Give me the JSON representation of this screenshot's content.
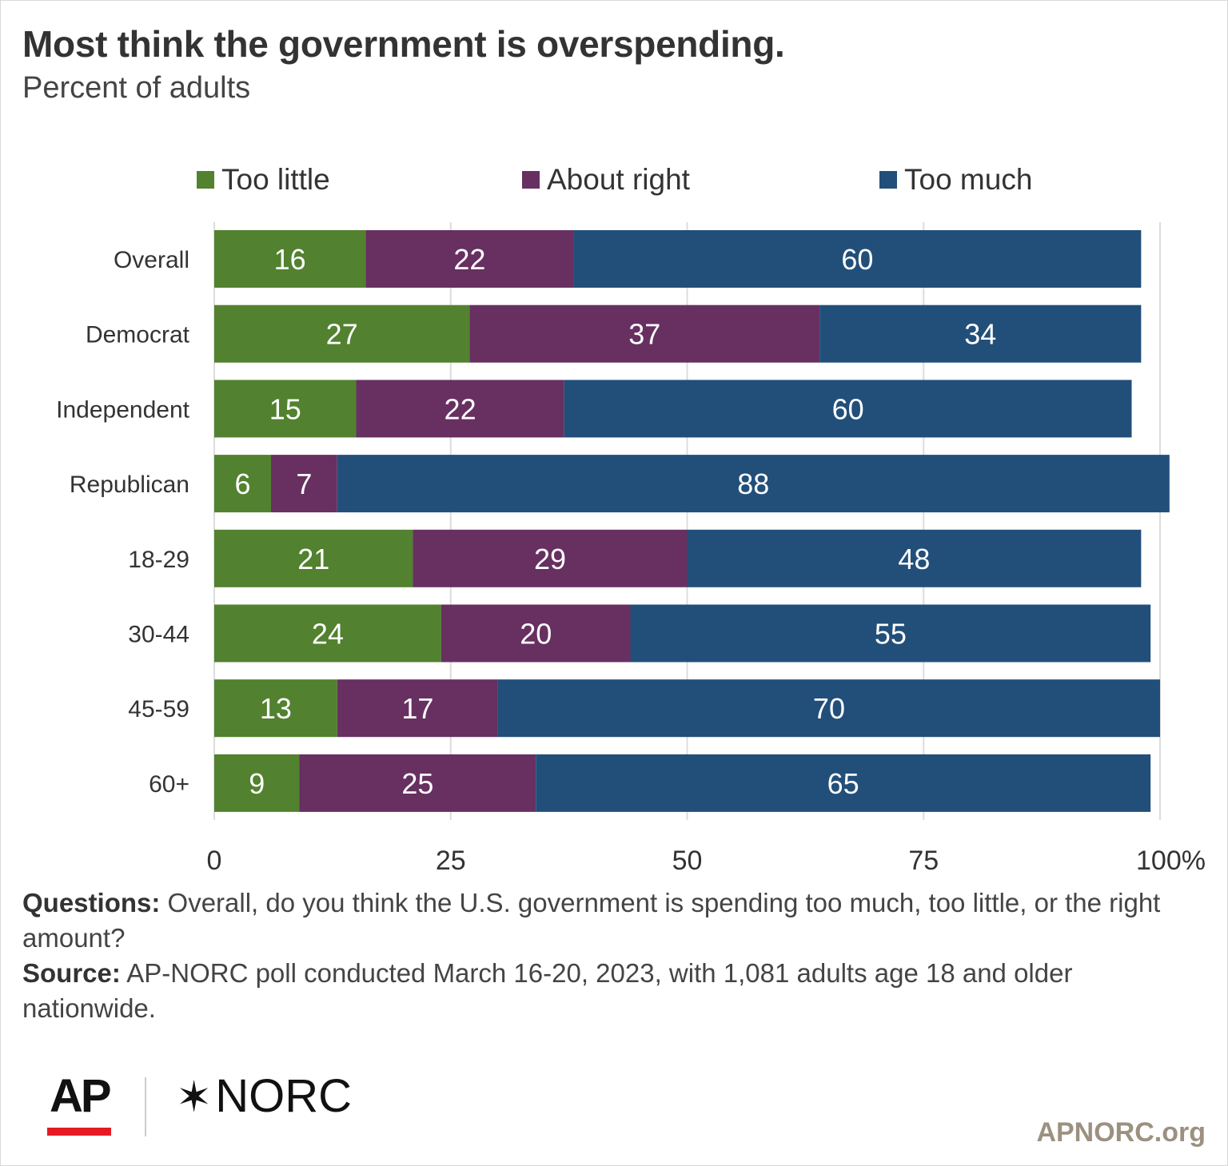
{
  "title": "Most think the government is overspending.",
  "subtitle": "Percent of adults",
  "notes": {
    "questions_label": "Questions:",
    "questions_text": "Overall, do you think the U.S. government is spending too much, too little, or the right amount?",
    "source_label": "Source:",
    "source_text": "AP-NORC poll conducted March 16-20, 2023, with 1,081 adults age 18 and older nationwide."
  },
  "logos": {
    "ap": "AP",
    "norc_star": "✶",
    "norc": "NORC",
    "site": "APNORC.org"
  },
  "chart_data": {
    "type": "bar",
    "orientation": "horizontal",
    "stacked": true,
    "categories": [
      "Overall",
      "Democrat",
      "Independent",
      "Republican",
      "18-29",
      "30-44",
      "45-59",
      "60+"
    ],
    "series": [
      {
        "name": "Too little",
        "color": "#52812f",
        "values": [
          16,
          27,
          15,
          6,
          21,
          24,
          13,
          9
        ]
      },
      {
        "name": "About right",
        "color": "#673061",
        "values": [
          22,
          37,
          22,
          7,
          29,
          20,
          17,
          25
        ]
      },
      {
        "name": "Too much",
        "color": "#224f7a",
        "values": [
          60,
          34,
          60,
          88,
          48,
          55,
          70,
          65
        ]
      }
    ],
    "xlim": [
      0,
      100
    ],
    "x_ticks": [
      "0",
      "25",
      "50",
      "75",
      "100%"
    ],
    "x_tick_values": [
      0,
      25,
      50,
      75,
      100
    ],
    "grid": true,
    "legend_position": "top"
  }
}
